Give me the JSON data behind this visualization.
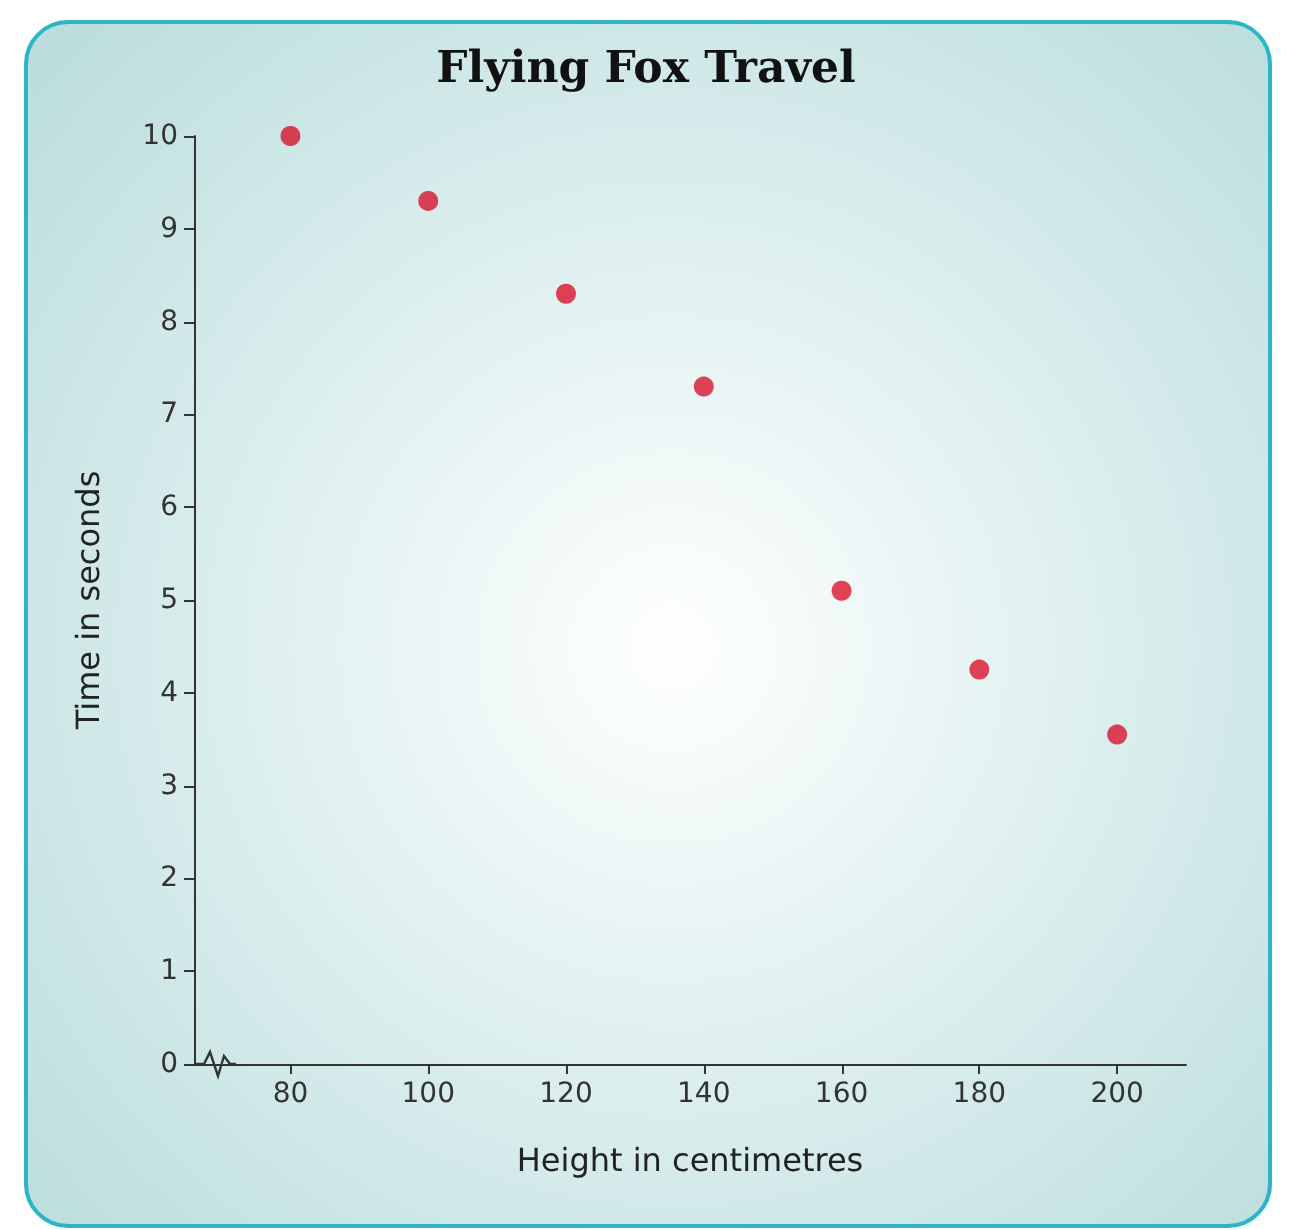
{
  "chart_data": {
    "type": "scatter",
    "title": "Flying Fox Travel",
    "xlabel": "Height in centimetres",
    "ylabel": "Time in seconds",
    "x": [
      80,
      100,
      120,
      140,
      160,
      180,
      200
    ],
    "values": [
      10,
      9.3,
      8.3,
      7.3,
      5.1,
      4.25,
      3.55
    ],
    "color": "#d9142c",
    "marker": "circle",
    "grid": false,
    "xlim": [
      66,
      210
    ],
    "xticks": [
      80,
      100,
      120,
      140,
      160,
      180,
      200
    ],
    "ylim": [
      0,
      10
    ],
    "yticks": [
      0,
      1,
      2,
      3,
      4,
      5,
      6,
      7,
      8,
      9,
      10
    ]
  }
}
